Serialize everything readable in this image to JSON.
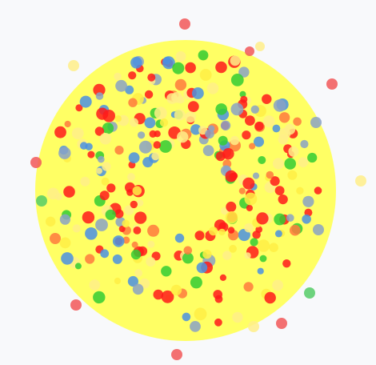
{
  "background_color": "#f8f9fb",
  "arena_color": "#ffff5c",
  "palette": {
    "red": "#ff1a1a",
    "red_edge": "#f25858",
    "orange": "#ff7a3d",
    "yellow": "#ffee44",
    "pale_yellow": "#ffef88",
    "green": "#33cc33",
    "green_edge": "#55cc66",
    "blue": "#4a90e2",
    "grey_blue": "#8aa2c6"
  },
  "dot_count": 330
}
